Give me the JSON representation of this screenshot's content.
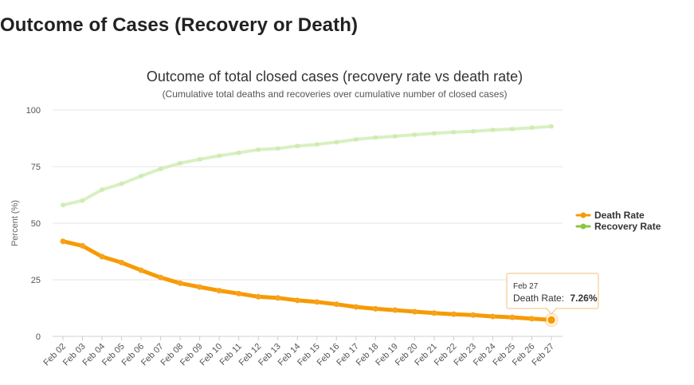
{
  "page": {
    "heading": "Outcome of Cases (Recovery or Death)"
  },
  "colors": {
    "death": "#f7a21d",
    "death_line": "#f79a00",
    "recovery": "#c9e9a8",
    "recovery_legend": "#8cc63f",
    "grid": "#e6e6e6"
  },
  "chart_data": {
    "type": "line",
    "title": "Outcome of total closed cases (recovery rate vs death rate)",
    "subtitle": "(Cumulative total deaths and recoveries over cumulative number of closed cases)",
    "xlabel": "",
    "ylabel": "Percent (%)",
    "ylim": [
      0,
      100
    ],
    "yticks": [
      0,
      25,
      50,
      75,
      100
    ],
    "grid": true,
    "legend_position": "right",
    "categories": [
      "Feb 02",
      "Feb 03",
      "Feb 04",
      "Feb 05",
      "Feb 06",
      "Feb 07",
      "Feb 08",
      "Feb 09",
      "Feb 10",
      "Feb 11",
      "Feb 12",
      "Feb 13",
      "Feb 14",
      "Feb 15",
      "Feb 16",
      "Feb 17",
      "Feb 18",
      "Feb 19",
      "Feb 20",
      "Feb 21",
      "Feb 22",
      "Feb 23",
      "Feb 24",
      "Feb 25",
      "Feb 26",
      "Feb 27"
    ],
    "series": [
      {
        "name": "Death Rate",
        "values": [
          42.0,
          40.0,
          35.2,
          32.6,
          29.2,
          26.0,
          23.5,
          21.8,
          20.2,
          18.9,
          17.5,
          17.0,
          15.9,
          15.2,
          14.2,
          13.0,
          12.2,
          11.6,
          10.9,
          10.3,
          9.8,
          9.4,
          8.8,
          8.4,
          7.8,
          7.26
        ]
      },
      {
        "name": "Recovery Rate",
        "values": [
          58.0,
          60.0,
          64.8,
          67.4,
          70.8,
          74.0,
          76.5,
          78.2,
          79.8,
          81.1,
          82.5,
          83.0,
          84.1,
          84.8,
          85.8,
          87.0,
          87.8,
          88.4,
          89.1,
          89.7,
          90.2,
          90.6,
          91.2,
          91.6,
          92.2,
          92.74
        ]
      }
    ],
    "tooltip": {
      "date": "Feb 27",
      "label": "Death Rate:",
      "value": "7.26%"
    }
  }
}
